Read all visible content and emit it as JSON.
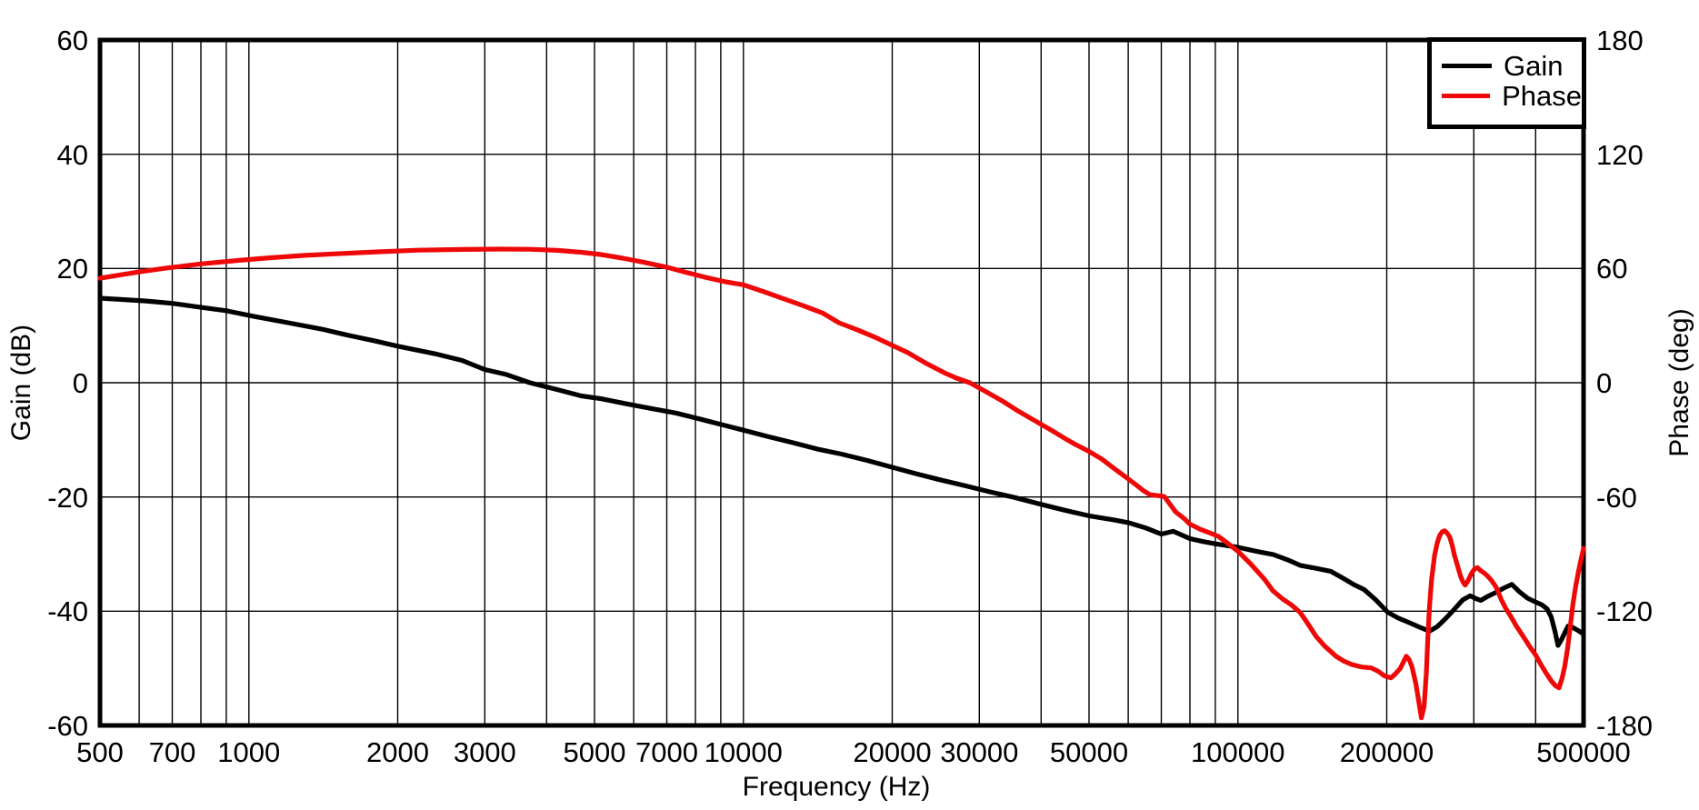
{
  "figure": {
    "background": "#ffffff",
    "frame_color": "#000000",
    "grid_color": "#000000"
  },
  "chart_data": {
    "type": "line",
    "title": "",
    "xlabel": "Frequency (Hz)",
    "ylabel_left": "Gain (dB)",
    "ylabel_right": "Phase (deg)",
    "grid": true,
    "x_axis": {
      "scale": "log",
      "min": 500,
      "max": 500000,
      "ticks": [
        [
          500,
          "500"
        ],
        [
          600,
          ""
        ],
        [
          700,
          "700"
        ],
        [
          800,
          ""
        ],
        [
          900,
          ""
        ],
        [
          1000,
          "1000"
        ],
        [
          2000,
          "2000"
        ],
        [
          3000,
          "3000"
        ],
        [
          4000,
          ""
        ],
        [
          5000,
          "5000"
        ],
        [
          6000,
          ""
        ],
        [
          7000,
          "7000"
        ],
        [
          8000,
          ""
        ],
        [
          9000,
          ""
        ],
        [
          10000,
          "10000"
        ],
        [
          20000,
          "20000"
        ],
        [
          30000,
          "30000"
        ],
        [
          40000,
          ""
        ],
        [
          50000,
          "50000"
        ],
        [
          60000,
          ""
        ],
        [
          70000,
          ""
        ],
        [
          80000,
          ""
        ],
        [
          90000,
          ""
        ],
        [
          100000,
          "100000"
        ],
        [
          200000,
          "200000"
        ],
        [
          300000,
          ""
        ],
        [
          400000,
          ""
        ],
        [
          500000,
          "500000"
        ]
      ]
    },
    "y_axis_left": {
      "min": -60,
      "max": 60,
      "ticks": [
        [
          60,
          "60"
        ],
        [
          40,
          "40"
        ],
        [
          20,
          "20"
        ],
        [
          0,
          "0"
        ],
        [
          -20,
          "-20"
        ],
        [
          -40,
          "-40"
        ],
        [
          -60,
          "-60"
        ]
      ]
    },
    "y_axis_right": {
      "min": -180,
      "max": 180,
      "ticks": [
        [
          180,
          "180"
        ],
        [
          120,
          "120"
        ],
        [
          60,
          "60"
        ],
        [
          0,
          "0"
        ],
        [
          -60,
          "-60"
        ],
        [
          -120,
          "-120"
        ],
        [
          -180,
          "-180"
        ]
      ]
    },
    "legend": {
      "position": "top-right",
      "items": [
        {
          "label": "Gain",
          "color": "#000000"
        },
        {
          "label": "Phase",
          "color": "#ee0808"
        }
      ]
    },
    "series": [
      {
        "name": "Gain",
        "axis": "left",
        "color": "#000000",
        "unit": "dB",
        "points": [
          [
            500,
            14.8
          ],
          [
            620,
            14.3
          ],
          [
            700,
            13.9
          ],
          [
            800,
            13.2
          ],
          [
            900,
            12.6
          ],
          [
            1025,
            11.6
          ],
          [
            1200,
            10.5
          ],
          [
            1400,
            9.4
          ],
          [
            1570,
            8.4
          ],
          [
            1800,
            7.3
          ],
          [
            2000,
            6.4
          ],
          [
            2400,
            5.0
          ],
          [
            2700,
            3.9
          ],
          [
            3000,
            2.3
          ],
          [
            3300,
            1.5
          ],
          [
            3700,
            0.0
          ],
          [
            4200,
            -1.2
          ],
          [
            4700,
            -2.3
          ],
          [
            5150,
            -2.8
          ],
          [
            5800,
            -3.7
          ],
          [
            6500,
            -4.5
          ],
          [
            7300,
            -5.3
          ],
          [
            8200,
            -6.4
          ],
          [
            9100,
            -7.4
          ],
          [
            10000,
            -8.3
          ],
          [
            11200,
            -9.4
          ],
          [
            12600,
            -10.5
          ],
          [
            14100,
            -11.6
          ],
          [
            15800,
            -12.5
          ],
          [
            17800,
            -13.6
          ],
          [
            20000,
            -14.8
          ],
          [
            22500,
            -16.0
          ],
          [
            25000,
            -17.0
          ],
          [
            28000,
            -18.0
          ],
          [
            31500,
            -19.1
          ],
          [
            35400,
            -20.1
          ],
          [
            40000,
            -21.3
          ],
          [
            45000,
            -22.4
          ],
          [
            50000,
            -23.3
          ],
          [
            56000,
            -24.0
          ],
          [
            60000,
            -24.5
          ],
          [
            65000,
            -25.4
          ],
          [
            70000,
            -26.5
          ],
          [
            74000,
            -26.0
          ],
          [
            80000,
            -27.3
          ],
          [
            85000,
            -27.8
          ],
          [
            90000,
            -28.2
          ],
          [
            100000,
            -28.8
          ],
          [
            109000,
            -29.5
          ],
          [
            118000,
            -30.1
          ],
          [
            126000,
            -31.0
          ],
          [
            134000,
            -32.0
          ],
          [
            144000,
            -32.5
          ],
          [
            154000,
            -33.0
          ],
          [
            163000,
            -34.2
          ],
          [
            172000,
            -35.4
          ],
          [
            180000,
            -36.2
          ],
          [
            190000,
            -38.0
          ],
          [
            201000,
            -40.2
          ],
          [
            211000,
            -41.2
          ],
          [
            222000,
            -42.0
          ],
          [
            233000,
            -42.8
          ],
          [
            244000,
            -43.5
          ],
          [
            253000,
            -42.7
          ],
          [
            263000,
            -41.3
          ],
          [
            273000,
            -39.8
          ],
          [
            285000,
            -38.0
          ],
          [
            295000,
            -37.3
          ],
          [
            303000,
            -37.8
          ],
          [
            310000,
            -38.1
          ],
          [
            320000,
            -37.4
          ],
          [
            331000,
            -36.8
          ],
          [
            344000,
            -36.0
          ],
          [
            358000,
            -35.3
          ],
          [
            371000,
            -36.6
          ],
          [
            385000,
            -37.7
          ],
          [
            400000,
            -38.4
          ],
          [
            412000,
            -38.9
          ],
          [
            422000,
            -39.6
          ],
          [
            430000,
            -41.0
          ],
          [
            438000,
            -43.6
          ],
          [
            444000,
            -46.0
          ],
          [
            451000,
            -45.0
          ],
          [
            458000,
            -43.8
          ],
          [
            465000,
            -42.6
          ],
          [
            472000,
            -42.7
          ],
          [
            481000,
            -43.1
          ],
          [
            490000,
            -43.5
          ],
          [
            500000,
            -44.0
          ]
        ]
      },
      {
        "name": "Phase",
        "axis": "right",
        "color": "#ee0808",
        "unit": "deg",
        "points": [
          [
            500,
            54.9
          ],
          [
            600,
            58.2
          ],
          [
            680,
            60.2
          ],
          [
            800,
            62.4
          ],
          [
            950,
            64.2
          ],
          [
            1100,
            65.6
          ],
          [
            1300,
            66.9
          ],
          [
            1550,
            67.9
          ],
          [
            1850,
            68.8
          ],
          [
            2200,
            69.6
          ],
          [
            2700,
            70.0
          ],
          [
            3200,
            70.2
          ],
          [
            3700,
            70.1
          ],
          [
            4200,
            69.5
          ],
          [
            4700,
            68.5
          ],
          [
            5150,
            67.3
          ],
          [
            5700,
            65.4
          ],
          [
            6300,
            63.2
          ],
          [
            7000,
            60.7
          ],
          [
            7600,
            58.2
          ],
          [
            8400,
            55.3
          ],
          [
            9200,
            53.0
          ],
          [
            10000,
            51.4
          ],
          [
            11000,
            47.8
          ],
          [
            12000,
            44.3
          ],
          [
            13200,
            40.5
          ],
          [
            14500,
            36.5
          ],
          [
            15600,
            31.5
          ],
          [
            17000,
            27.8
          ],
          [
            18500,
            23.8
          ],
          [
            20000,
            19.6
          ],
          [
            21500,
            15.8
          ],
          [
            23500,
            10.0
          ],
          [
            25500,
            5.2
          ],
          [
            27000,
            2.4
          ],
          [
            28700,
            0.0
          ],
          [
            31000,
            -4.8
          ],
          [
            33500,
            -9.8
          ],
          [
            36000,
            -15.0
          ],
          [
            38000,
            -18.5
          ],
          [
            40000,
            -21.8
          ],
          [
            42000,
            -25.0
          ],
          [
            44500,
            -29.0
          ],
          [
            47000,
            -32.5
          ],
          [
            50000,
            -36.1
          ],
          [
            53000,
            -40.0
          ],
          [
            56500,
            -45.5
          ],
          [
            60000,
            -50.5
          ],
          [
            62500,
            -54.0
          ],
          [
            64500,
            -56.8
          ],
          [
            66500,
            -58.8
          ],
          [
            69000,
            -59.3
          ],
          [
            71000,
            -59.8
          ],
          [
            74800,
            -67.8
          ],
          [
            78000,
            -71.5
          ],
          [
            80000,
            -74.3
          ],
          [
            84000,
            -77.0
          ],
          [
            88000,
            -79.0
          ],
          [
            91300,
            -80.7
          ],
          [
            95000,
            -84.0
          ],
          [
            100000,
            -88.5
          ],
          [
            106000,
            -95.0
          ],
          [
            113000,
            -103.0
          ],
          [
            117700,
            -109.3
          ],
          [
            123000,
            -113.5
          ],
          [
            128000,
            -116.5
          ],
          [
            133600,
            -120.6
          ],
          [
            138000,
            -126.0
          ],
          [
            144000,
            -133.3
          ],
          [
            150000,
            -138.5
          ],
          [
            158000,
            -143.7
          ],
          [
            164000,
            -146.3
          ],
          [
            170000,
            -148.0
          ],
          [
            178000,
            -149.3
          ],
          [
            186000,
            -149.8
          ],
          [
            192000,
            -151.5
          ],
          [
            198000,
            -154.0
          ],
          [
            204000,
            -155.0
          ],
          [
            208000,
            -153.0
          ],
          [
            213000,
            -150.0
          ],
          [
            219000,
            -143.6
          ],
          [
            222000,
            -145.5
          ],
          [
            225000,
            -149.2
          ],
          [
            229000,
            -158.0
          ],
          [
            232000,
            -167.0
          ],
          [
            235000,
            -176.0
          ],
          [
            238000,
            -170.0
          ],
          [
            240500,
            -152.0
          ],
          [
            242000,
            -134.9
          ],
          [
            244000,
            -118.0
          ],
          [
            246500,
            -103.0
          ],
          [
            250000,
            -90.5
          ],
          [
            253000,
            -84.0
          ],
          [
            256000,
            -80.2
          ],
          [
            259000,
            -78.2
          ],
          [
            262000,
            -77.8
          ],
          [
            265000,
            -79.0
          ],
          [
            268000,
            -81.0
          ],
          [
            271000,
            -85.0
          ],
          [
            274000,
            -90.5
          ],
          [
            278000,
            -96.0
          ],
          [
            282000,
            -101.6
          ],
          [
            285000,
            -104.5
          ],
          [
            288000,
            -106.3
          ],
          [
            292000,
            -104.0
          ],
          [
            297000,
            -100.0
          ],
          [
            301000,
            -97.8
          ],
          [
            305000,
            -97.1
          ],
          [
            310000,
            -98.8
          ],
          [
            315000,
            -100.0
          ],
          [
            320000,
            -101.6
          ],
          [
            326000,
            -104.0
          ],
          [
            333000,
            -107.5
          ],
          [
            341000,
            -114.0
          ],
          [
            348000,
            -118.5
          ],
          [
            356000,
            -122.5
          ],
          [
            366000,
            -128.0
          ],
          [
            377000,
            -133.0
          ],
          [
            389000,
            -138.5
          ],
          [
            400000,
            -143.0
          ],
          [
            410000,
            -148.0
          ],
          [
            420000,
            -152.5
          ],
          [
            430000,
            -156.5
          ],
          [
            438000,
            -159.0
          ],
          [
            446000,
            -160.3
          ],
          [
            452000,
            -155.5
          ],
          [
            458000,
            -149.0
          ],
          [
            464000,
            -140.0
          ],
          [
            470000,
            -128.0
          ],
          [
            476000,
            -116.0
          ],
          [
            482000,
            -107.0
          ],
          [
            489000,
            -98.5
          ],
          [
            495000,
            -92.0
          ],
          [
            500000,
            -87.0
          ]
        ]
      }
    ]
  }
}
